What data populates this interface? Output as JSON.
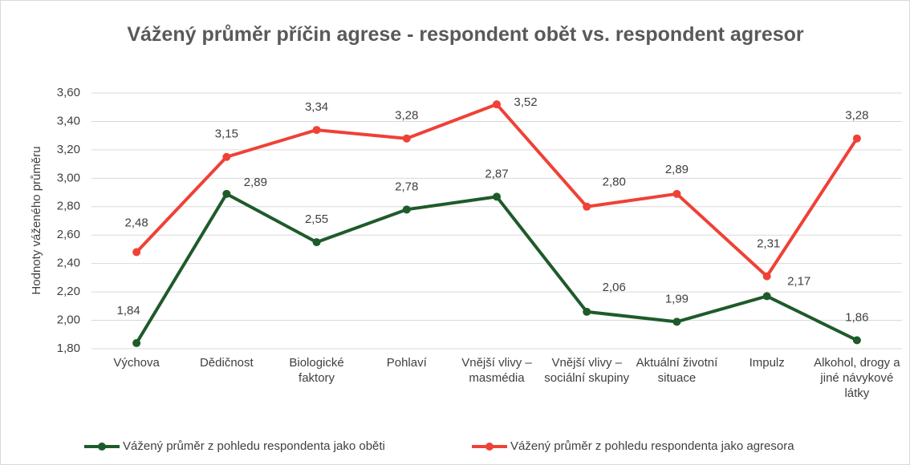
{
  "chart_data": {
    "type": "line",
    "title": "Vážený průměr příčin agrese - respondent obět vs. respondent agresor",
    "y_label": "Hodnoty váženého průměru",
    "categories": [
      "Výchova",
      "Dědičnost",
      "Biologické faktory",
      "Pohlaví",
      "Vnější vlivy – masmédia",
      "Vnější vlivy – sociální skupiny",
      "Aktuální životní situace",
      "Impulz",
      "Alkohol, drogy a jiné návykové látky"
    ],
    "series": [
      {
        "name": "Vážený průměr z pohledu respondenta jako oběti",
        "color": "#1e5b2a",
        "values": [
          1.84,
          2.89,
          2.55,
          2.78,
          2.87,
          2.06,
          1.99,
          2.17,
          1.86
        ],
        "value_labels": [
          "1,84",
          "2,89",
          "2,55",
          "2,78",
          "2,87",
          "2,06",
          "1,99",
          "2,17",
          "1,86"
        ]
      },
      {
        "name": "Vážený průměr z pohledu respondenta jako agresora",
        "color": "#ef4136",
        "values": [
          2.48,
          3.15,
          3.34,
          3.28,
          3.52,
          2.8,
          2.89,
          2.31,
          3.28
        ],
        "value_labels": [
          "2,48",
          "3,15",
          "3,34",
          "3,28",
          "3,52",
          "2,80",
          "2,89",
          "2,31",
          "3,28"
        ]
      }
    ],
    "ylim": [
      1.8,
      3.6
    ],
    "yticks": [
      {
        "value": 1.8,
        "label": "1,80"
      },
      {
        "value": 2.0,
        "label": "2,00"
      },
      {
        "value": 2.2,
        "label": "2,20"
      },
      {
        "value": 2.4,
        "label": "2,40"
      },
      {
        "value": 2.6,
        "label": "2,60"
      },
      {
        "value": 2.8,
        "label": "2,80"
      },
      {
        "value": 3.0,
        "label": "3,00"
      },
      {
        "value": 3.2,
        "label": "3,20"
      },
      {
        "value": 3.4,
        "label": "3,40"
      },
      {
        "value": 3.6,
        "label": "3,60"
      }
    ],
    "grid": true,
    "legend": "bottom"
  }
}
